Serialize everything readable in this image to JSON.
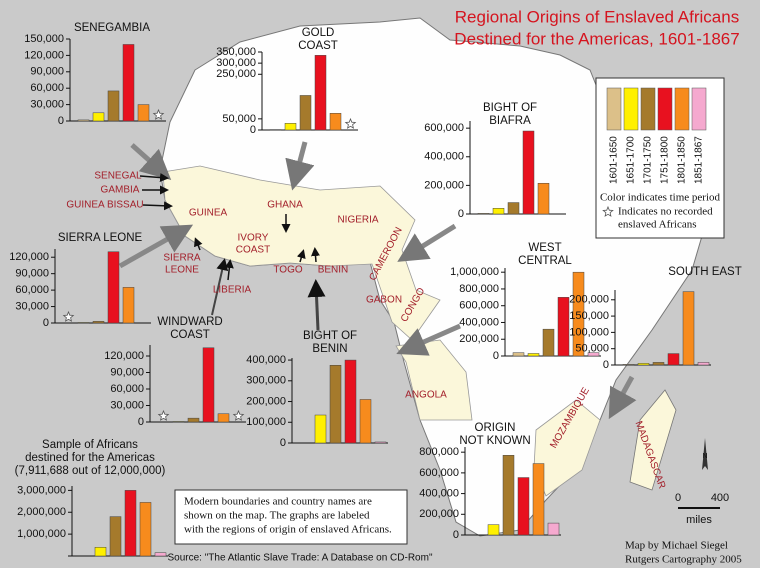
{
  "title_lines": [
    "Regional Origins of Enslaved Africans",
    "Destined for the Americas, 1601-1867"
  ],
  "legend": {
    "periods": [
      "1601-1650",
      "1651-1700",
      "1701-1750",
      "1751-1800",
      "1801-1850",
      "1851-1867"
    ],
    "colors": [
      "#dcc089",
      "#fff000",
      "#a57a2c",
      "#e8111f",
      "#f78b1d",
      "#f5a9cf"
    ],
    "caption": "Color indicates time period",
    "no_record_note": [
      "Indicates no recorded",
      "enslaved Africans"
    ]
  },
  "chart_data": [
    {
      "type": "bar",
      "title_lines": [
        "SENEGAMBIA"
      ],
      "values": [
        2000,
        15000,
        55000,
        140000,
        30000,
        null
      ],
      "ylim": [
        0,
        150000
      ],
      "yticks": [
        0,
        {
          "value": 30000,
          "label": "30,000"
        },
        {
          "value": 60000,
          "label": "60,000"
        },
        {
          "value": 90000,
          "label": "90,000"
        },
        {
          "value": 120000,
          "label": "120,000"
        },
        {
          "value": 150000,
          "label": "150,000"
        }
      ]
    },
    {
      "type": "bar",
      "title_lines": [
        "GOLD",
        "COAST"
      ],
      "values": [
        2000,
        30000,
        155000,
        335000,
        75000,
        null
      ],
      "ylim": [
        0,
        350000
      ],
      "yticks": [
        0,
        {
          "value": 50000,
          "label": "50,000"
        },
        {
          "value": 250000,
          "label": "250,000"
        },
        {
          "value": 300000,
          "label": "300,000"
        },
        {
          "value": 350000,
          "label": "350,000"
        }
      ]
    },
    {
      "type": "bar",
      "title_lines": [
        "BIGHT OF",
        "BIAFRA"
      ],
      "values": [
        5000,
        40000,
        80000,
        580000,
        215000,
        0
      ],
      "ylim": [
        0,
        650000
      ],
      "yticks": [
        0,
        {
          "value": 200000,
          "label": "200,000"
        },
        {
          "value": 400000,
          "label": "400,000"
        },
        {
          "value": 600000,
          "label": "600,000"
        }
      ]
    },
    {
      "type": "bar",
      "title_lines": [
        "SIERRA LEONE"
      ],
      "values": [
        null,
        1000,
        3000,
        130000,
        65000,
        0
      ],
      "ylim": [
        0,
        135000
      ],
      "yticks": [
        0,
        {
          "value": 30000,
          "label": "30,000"
        },
        {
          "value": 60000,
          "label": "60,000"
        },
        {
          "value": 90000,
          "label": "90,000"
        },
        {
          "value": 120000,
          "label": "120,000"
        }
      ]
    },
    {
      "type": "bar",
      "title_lines": [
        "WINDWARD",
        "COAST"
      ],
      "values": [
        null,
        1000,
        7000,
        135000,
        15000,
        null
      ],
      "ylim": [
        0,
        140000
      ],
      "yticks": [
        0,
        {
          "value": 30000,
          "label": "30,000"
        },
        {
          "value": 60000,
          "label": "60,000"
        },
        {
          "value": 90000,
          "label": "90,000"
        },
        {
          "value": 120000,
          "label": "120,000"
        }
      ]
    },
    {
      "type": "bar",
      "title_lines": [
        "BIGHT OF",
        "BENIN"
      ],
      "values": [
        0,
        135000,
        375000,
        400000,
        210000,
        5000
      ],
      "ylim": [
        0,
        410000
      ],
      "yticks": [
        0,
        {
          "value": 100000,
          "label": "100,000"
        },
        {
          "value": 200000,
          "label": "200,000"
        },
        {
          "value": 300000,
          "label": "300,000"
        },
        {
          "value": 400000,
          "label": "400,000"
        }
      ]
    },
    {
      "type": "bar",
      "title_lines": [
        "WEST",
        "CENTRAL"
      ],
      "values": [
        40000,
        30000,
        320000,
        700000,
        1000000,
        40000
      ],
      "ylim": [
        0,
        1050000
      ],
      "yticks": [
        0,
        {
          "value": 200000,
          "label": "200,000"
        },
        {
          "value": 400000,
          "label": "400,000"
        },
        {
          "value": 600000,
          "label": "600,000"
        },
        {
          "value": 800000,
          "label": "800,000"
        },
        {
          "value": 1000000,
          "label": "1,000,000"
        }
      ]
    },
    {
      "type": "bar",
      "title_lines": [
        "SOUTH EAST"
      ],
      "values": [
        2000,
        5000,
        8000,
        35000,
        225000,
        8000
      ],
      "ylim": [
        0,
        230000
      ],
      "yticks": [
        0,
        {
          "value": 50000,
          "label": "50,000"
        },
        {
          "value": 100000,
          "label": "100,000"
        },
        {
          "value": 150000,
          "label": "150,000"
        },
        {
          "value": 200000,
          "label": "200,000"
        }
      ]
    },
    {
      "type": "bar",
      "title_lines": [
        "ORIGIN",
        "NOT KNOWN"
      ],
      "values": [
        0,
        100000,
        770000,
        555000,
        690000,
        115000
      ],
      "ylim": [
        0,
        850000
      ],
      "yticks": [
        0,
        {
          "value": 200000,
          "label": "200,000"
        },
        {
          "value": 400000,
          "label": "400,000"
        },
        {
          "value": 600000,
          "label": "600,000"
        },
        {
          "value": 800000,
          "label": "800,000"
        }
      ]
    },
    {
      "type": "bar",
      "title_lines": [
        "Sample of Africans",
        "destined for the Americas",
        "(7,911,688 out of 12,000,000)"
      ],
      "values": [
        0,
        400000,
        1800000,
        3000000,
        2450000,
        150000
      ],
      "ylim": [
        0,
        3200000
      ],
      "yticks": [
        {
          "value": 1000000,
          "label": "1,000,000"
        },
        {
          "value": 2000000,
          "label": "2,000,000"
        },
        {
          "value": 3000000,
          "label": "3,000,000"
        }
      ]
    }
  ],
  "map_labels": [
    [
      "SENEGAL"
    ],
    [
      "GAMBIA"
    ],
    [
      "GUINEA BISSAU"
    ],
    [
      "GUINEA"
    ],
    [
      "GHANA"
    ],
    [
      "NIGERIA"
    ],
    [
      "IVORY",
      "COAST"
    ],
    [
      "SIERRA",
      "LEONE"
    ],
    [
      "LIBERIA"
    ],
    [
      "TOGO"
    ],
    [
      "BENIN"
    ],
    [
      "CAMEROON"
    ],
    [
      "GABON"
    ],
    [
      "CONGO"
    ],
    [
      "ANGOLA"
    ],
    [
      "MOZAMBIQUE"
    ],
    [
      "MADAGASCAR"
    ]
  ],
  "note_lines": [
    "Modern boundaries and country names are",
    "shown on the map.  The graphs are labeled",
    "with the regions of origin of enslaved Africans."
  ],
  "source": "Source: \"The Atlantic Slave Trade: A Database on CD-Rom\"",
  "credit_lines": [
    "Map by Michael Siegel",
    "Rutgers Cartography 2005"
  ],
  "scale": {
    "start": "0",
    "end": "400",
    "unit": "miles"
  },
  "north": "N"
}
